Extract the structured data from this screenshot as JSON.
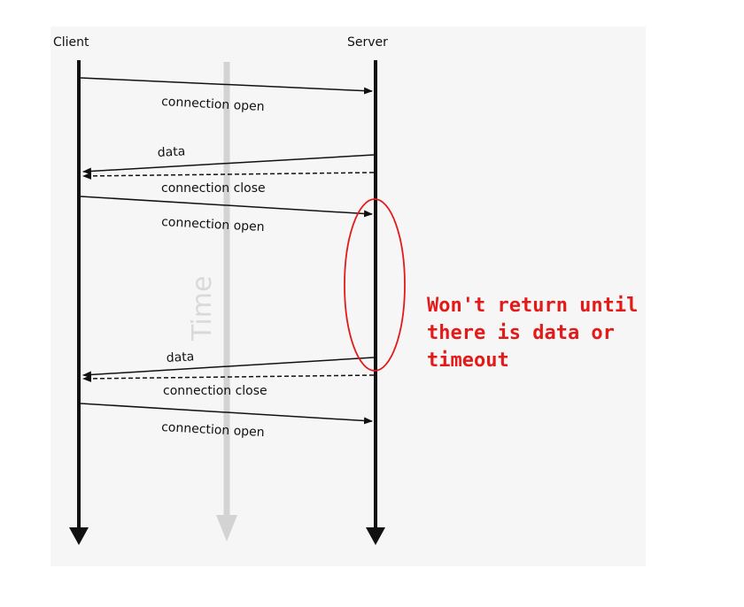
{
  "diagram": {
    "actors": {
      "client": "Client",
      "server": "Server"
    },
    "time_label": "Time",
    "messages": [
      {
        "label": "connection open",
        "direction": "client-to-server",
        "style": "solid"
      },
      {
        "label": "data",
        "direction": "server-to-client",
        "style": "solid"
      },
      {
        "label": "connection close",
        "direction": "server-to-client",
        "style": "dashed"
      },
      {
        "label": "connection open",
        "direction": "client-to-server",
        "style": "solid"
      },
      {
        "label": "data",
        "direction": "server-to-client",
        "style": "solid"
      },
      {
        "label": "connection close",
        "direction": "server-to-client",
        "style": "dashed"
      },
      {
        "label": "connection open",
        "direction": "client-to-server",
        "style": "solid"
      }
    ],
    "annotation": {
      "lines": [
        "Won't return until",
        "there is data or",
        "timeout"
      ],
      "color": "#e31a1a"
    }
  }
}
